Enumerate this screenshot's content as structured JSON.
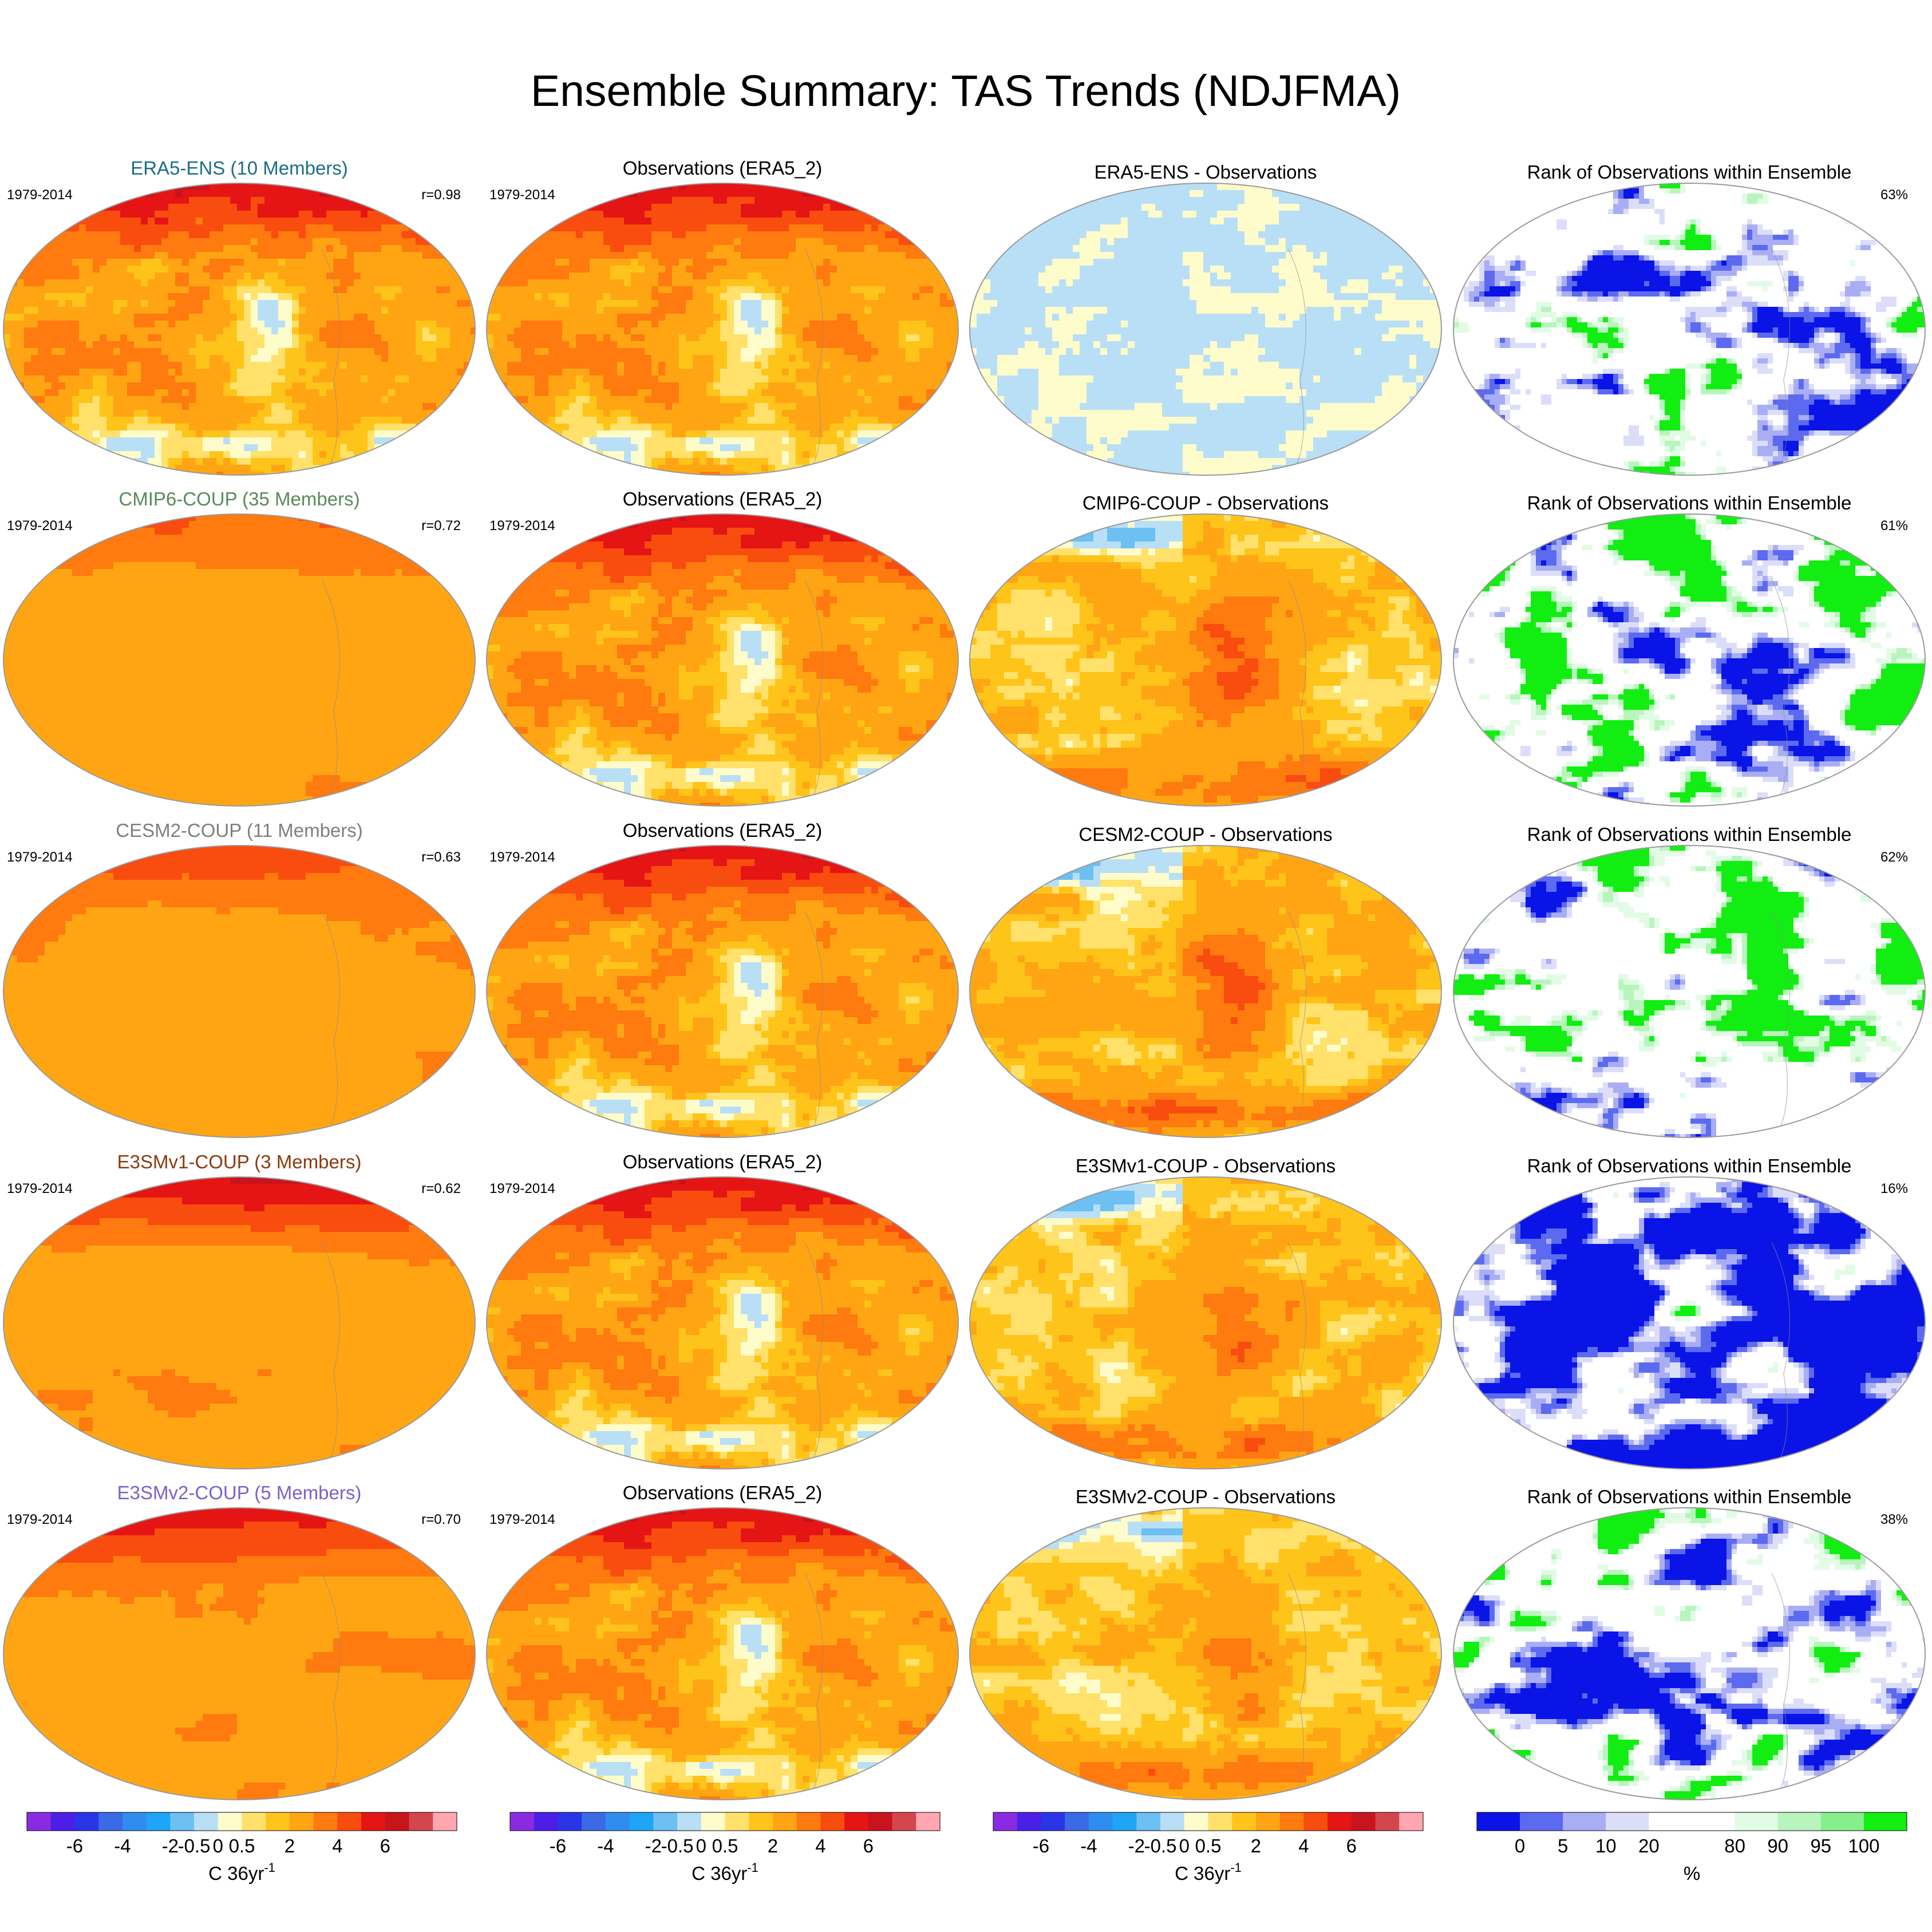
{
  "title": "Ensemble Summary: TAS Trends (NDJFMA)",
  "colors": {
    "trend_palette": [
      "#8a2be2",
      "#4b1fe6",
      "#2a35e8",
      "#3a6ae6",
      "#2f8df0",
      "#1fa5f5",
      "#6cc0f2",
      "#b8dff5",
      "#fffccc",
      "#ffe16b",
      "#ffc41a",
      "#ffa514",
      "#ff7a0f",
      "#f84d0f",
      "#e61515",
      "#c8141c",
      "#d4464e",
      "#ffa6b0"
    ],
    "rank_palette": [
      "#0a14e6",
      "#5c6af0",
      "#a9aef4",
      "#dcdef9",
      "#ffffff",
      "#ffffff",
      "#e2fbe5",
      "#b8f5bd",
      "#86ee8c",
      "#12ee12"
    ]
  },
  "chart_data": {
    "type": "heatmap",
    "period": "1979-2014",
    "rows": [
      {
        "model_label": "ERA5-ENS (10 Members)",
        "label_color": "#1b6e8a",
        "r": "r=0.98",
        "obs_title": "Observations (ERA5_2)",
        "diff_title": "ERA5-ENS - Observations",
        "rank_title": "Rank of Observations within Ensemble",
        "rank_pct": "63%"
      },
      {
        "model_label": "CMIP6-COUP (35 Members)",
        "label_color": "#5a8a5a",
        "r": "r=0.72",
        "obs_title": "Observations (ERA5_2)",
        "diff_title": "CMIP6-COUP - Observations",
        "rank_title": "Rank of Observations within Ensemble",
        "rank_pct": "61%"
      },
      {
        "model_label": "CESM2-COUP (11 Members)",
        "label_color": "#7f7f7f",
        "r": "r=0.63",
        "obs_title": "Observations (ERA5_2)",
        "diff_title": "CESM2-COUP - Observations",
        "rank_title": "Rank of Observations within Ensemble",
        "rank_pct": "62%"
      },
      {
        "model_label": "E3SMv1-COUP (3 Members)",
        "label_color": "#8b3a0f",
        "r": "r=0.62",
        "obs_title": "Observations (ERA5_2)",
        "diff_title": "E3SMv1-COUP - Observations",
        "rank_title": "Rank of Observations within Ensemble",
        "rank_pct": "16%"
      },
      {
        "model_label": "E3SMv2-COUP (5 Members)",
        "label_color": "#7a62c8",
        "r": "r=0.70",
        "obs_title": "Observations (ERA5_2)",
        "diff_title": "E3SMv2-COUP - Observations",
        "rank_title": "Rank of Observations within Ensemble",
        "rank_pct": "38%"
      }
    ],
    "trend_colorbar": {
      "tick_labels": [
        "-6",
        "-4",
        "-2",
        "-0.5",
        "0",
        "0.5",
        "2",
        "4",
        "6"
      ],
      "unit": "C 36yr",
      "unit_exponent": "-1"
    },
    "rank_colorbar": {
      "tick_labels": [
        "0",
        "5",
        "10",
        "20",
        "80",
        "90",
        "95",
        "100"
      ],
      "unit": "%"
    }
  }
}
